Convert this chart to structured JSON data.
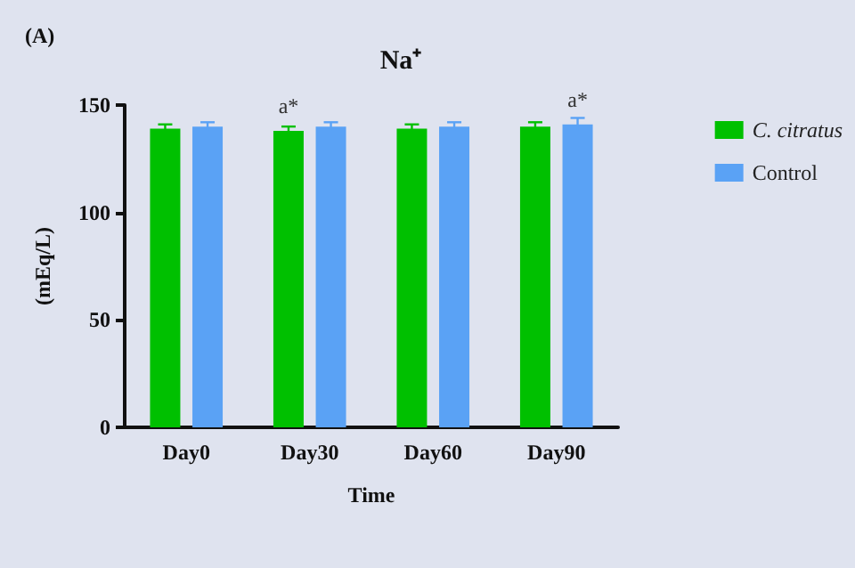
{
  "chart_data": {
    "type": "bar",
    "title": "Na⁺",
    "xlabel": "Time",
    "ylabel": "(mEq/L)",
    "annotations": [
      "(A)"
    ],
    "categories": [
      "Day0",
      "Day30",
      "Day60",
      "Day90"
    ],
    "series": [
      {
        "name": "C. citratus",
        "color": "#00c000",
        "values": [
          139,
          138,
          139,
          140
        ],
        "errors": [
          2,
          2,
          2,
          2
        ],
        "value_labels": [
          null,
          "a*",
          null,
          null
        ]
      },
      {
        "name": "Control",
        "color": "#5aa2f5",
        "values": [
          140,
          140,
          140,
          141
        ],
        "errors": [
          2,
          2,
          2,
          3
        ],
        "value_labels": [
          null,
          null,
          null,
          "a*"
        ]
      }
    ],
    "ylim": [
      0,
      150
    ],
    "yticks": [
      0,
      50,
      100,
      150
    ],
    "grid": false,
    "legend": "right"
  }
}
